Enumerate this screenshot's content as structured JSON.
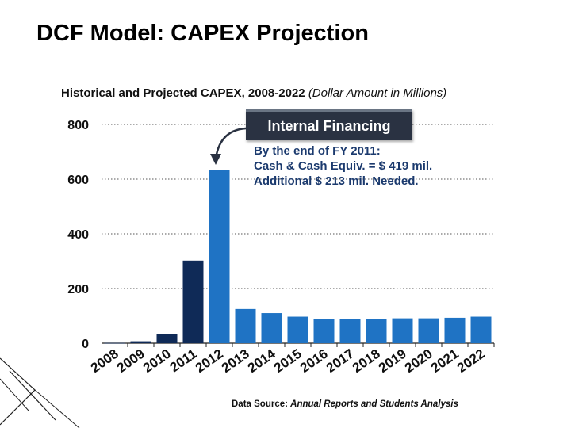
{
  "slide_title": "DCF Model: CAPEX Projection",
  "chart_title_main": "Historical and Projected CAPEX, 2008-2022",
  "chart_title_unit": "(Dollar Amount in Millions)",
  "callout_label": "Internal Financing",
  "note_lines": [
    "By the end of FY 2011:",
    "Cash & Cash Equiv. = $ 419 mil.",
    "Additional $ 213 mil. Needed."
  ],
  "source_prefix": "Data Source:",
  "source_text": "Annual Reports and Students Analysis",
  "colors": {
    "historical": "#0f2a57",
    "projected": "#1f73c4",
    "grid": "#555555",
    "callout": "#2a3242"
  },
  "chart_data": {
    "type": "bar",
    "title": "Historical and Projected CAPEX, 2008-2022 (Dollar Amount in Millions)",
    "categories": [
      "2008",
      "2009",
      "2010",
      "2011",
      "2012",
      "2013",
      "2014",
      "2015",
      "2016",
      "2017",
      "2018",
      "2019",
      "2020",
      "2021",
      "2022"
    ],
    "values": [
      1,
      7,
      33,
      302,
      632,
      125,
      110,
      97,
      89,
      89,
      89,
      91,
      91,
      93,
      97
    ],
    "historical_through": "2011",
    "yticks": [
      0,
      200,
      400,
      600,
      800
    ],
    "ylim": [
      0,
      800
    ],
    "grid": true,
    "grid_style": "dotted"
  }
}
